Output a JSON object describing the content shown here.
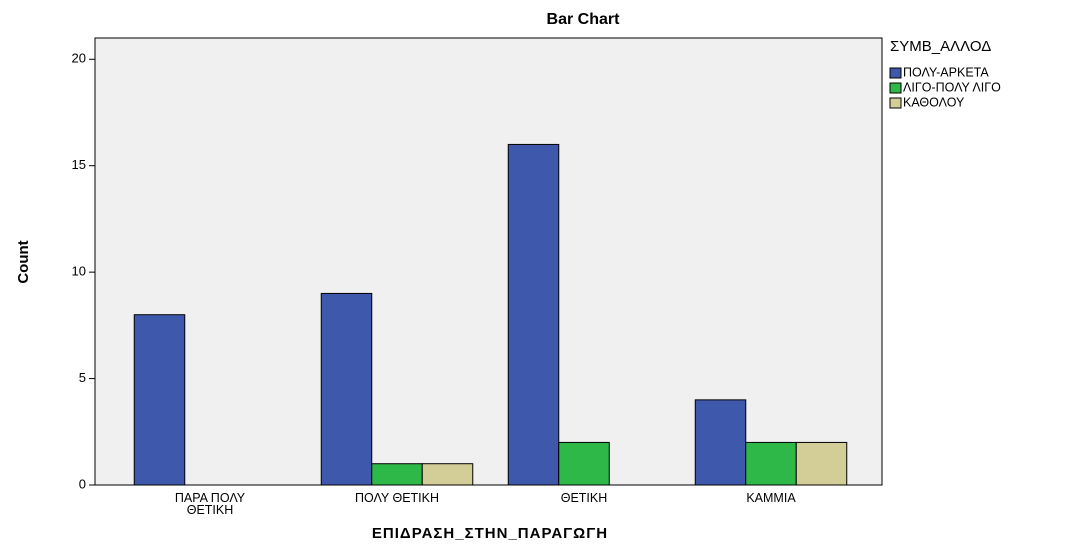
{
  "chart_data": {
    "type": "bar",
    "title": "Bar Chart",
    "x_label": "ΕΠΙΔΡΑΣΗ_ΣΤΗΝ_ΠΑΡΑΓΩΓΗ",
    "y_label": "Count",
    "legend_title": "ΣΥΜΒ_ΑΛΛΟΔ",
    "legend": "right",
    "categories": [
      "ΠΑΡΑ ΠΟΛΥ ΘΕΤΙΚΗ",
      "ΠΟΛΥ ΘΕΤΙΚΗ",
      "ΘΕΤΙΚΗ",
      "ΚΑΜΜΙΑ"
    ],
    "series": [
      {
        "name": "ΠΟΛΥ-ΑΡΚΕΤΑ",
        "color": "#3e58ac",
        "values": [
          8,
          9,
          16,
          4
        ]
      },
      {
        "name": "ΛΙΓΟ-ΠΟΛΥ ΛΙΓΟ",
        "color": "#2eb848",
        "values": [
          0,
          1,
          2,
          2
        ]
      },
      {
        "name": "ΚΑΘΟΛΟΥ",
        "color": "#d3ce97",
        "values": [
          0,
          1,
          0,
          2
        ]
      }
    ],
    "ylim": [
      0,
      21
    ],
    "yticks": [
      0,
      5,
      10,
      15,
      20
    ],
    "grid": false
  }
}
